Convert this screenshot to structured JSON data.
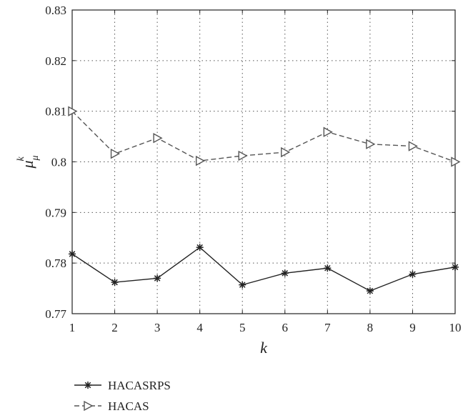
{
  "chart_data": {
    "type": "line",
    "xlabel": "k",
    "ylabel": "μ",
    "ylabel_sub": "μ",
    "ylabel_sup": "k",
    "xlim": [
      1,
      10
    ],
    "ylim": [
      0.77,
      0.83
    ],
    "x": [
      1,
      2,
      3,
      4,
      5,
      6,
      7,
      8,
      9,
      10
    ],
    "x_ticks": [
      "1",
      "2",
      "3",
      "4",
      "5",
      "6",
      "7",
      "8",
      "9",
      "10"
    ],
    "y_ticks": [
      "0.77",
      "0.78",
      "0.79",
      "0.8",
      "0.81",
      "0.82",
      "0.83"
    ],
    "y_tick_values": [
      0.77,
      0.78,
      0.79,
      0.8,
      0.81,
      0.82,
      0.83
    ],
    "grid": true,
    "legend_position": "below",
    "series": [
      {
        "name": "HACASRPS",
        "values": [
          0.7818,
          0.7762,
          0.777,
          0.7831,
          0.7757,
          0.778,
          0.779,
          0.7745,
          0.7778,
          0.7792
        ],
        "line_style": "solid",
        "marker": "asterisk",
        "color": "#222222"
      },
      {
        "name": "HACAS",
        "values": [
          0.81,
          0.8016,
          0.8047,
          0.8002,
          0.8012,
          0.8019,
          0.8059,
          0.8035,
          0.8031,
          0.8
        ],
        "line_style": "dashed",
        "marker": "triangle-right",
        "color": "#555555"
      }
    ]
  }
}
